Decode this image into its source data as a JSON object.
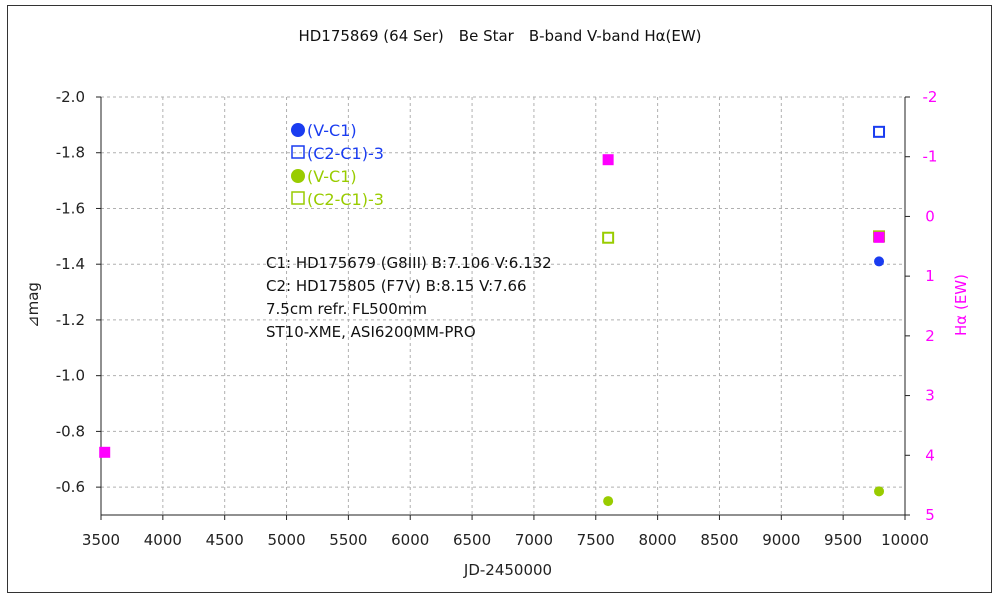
{
  "chart_data": {
    "type": "scatter",
    "title": "HD175869 (64 Ser)　Be Star　B-band  V-band  Hα(EW)",
    "xlabel": "JD-2450000",
    "ylabel": "⊿mag",
    "y2label": "Hα (EW)",
    "xlim": [
      3500,
      10000
    ],
    "ylim": [
      -0.5,
      -2.0
    ],
    "y2lim": [
      5,
      -2
    ],
    "x_ticks": [
      "3500",
      "4000",
      "4500",
      "5000",
      "5500",
      "6000",
      "6500",
      "7000",
      "7500",
      "8000",
      "8500",
      "9000",
      "9500",
      "10000"
    ],
    "y_ticks": [
      "-2.0",
      "-1.8",
      "-1.6",
      "-1.4",
      "-1.2",
      "-1.0",
      "-0.8",
      "-0.6"
    ],
    "y2_ticks": [
      "-2",
      "-1",
      "0",
      "1",
      "2",
      "3",
      "4",
      "5"
    ],
    "grid": true,
    "legend_placement": "top-left",
    "series": [
      {
        "name": "(V-C1)",
        "marker": "filled-circle",
        "color": "#1a3cf0",
        "axis": "left",
        "points": [
          {
            "x": 9790,
            "y": -1.41
          }
        ]
      },
      {
        "name": "(C2-C1)-3",
        "marker": "open-square",
        "color": "#1a3cf0",
        "axis": "left",
        "points": [
          {
            "x": 9790,
            "y": -1.875
          }
        ]
      },
      {
        "name": "(V-C1)",
        "marker": "filled-circle",
        "color": "#99cc00",
        "axis": "left",
        "points": [
          {
            "x": 7600,
            "y": -0.55
          },
          {
            "x": 9790,
            "y": -0.585
          }
        ]
      },
      {
        "name": "(C2-C1)-3",
        "marker": "open-square",
        "color": "#99cc00",
        "axis": "left",
        "points": [
          {
            "x": 7600,
            "y": -1.495
          },
          {
            "x": 9790,
            "y": -1.5
          }
        ]
      },
      {
        "name": "",
        "marker": "filled-square",
        "color": "#ff00ff",
        "axis": "right",
        "points": [
          {
            "x": 3530,
            "y": 3.95
          },
          {
            "x": 7600,
            "y": -0.95
          },
          {
            "x": 9790,
            "y": 0.35
          }
        ]
      }
    ],
    "annotations": [
      "C1: HD175679 (G8III)  B:7.106  V:6.132",
      "C2: HD175805 (F7V)  B:8.15  V:7.66",
      "7.5cm refr. FL500mm",
      "ST10-XME, ASI6200MM-PRO"
    ]
  },
  "colors": {
    "blue": "#1a3cf0",
    "green": "#99cc00",
    "magenta": "#ff00ff",
    "grid": "#b0b0b0"
  }
}
